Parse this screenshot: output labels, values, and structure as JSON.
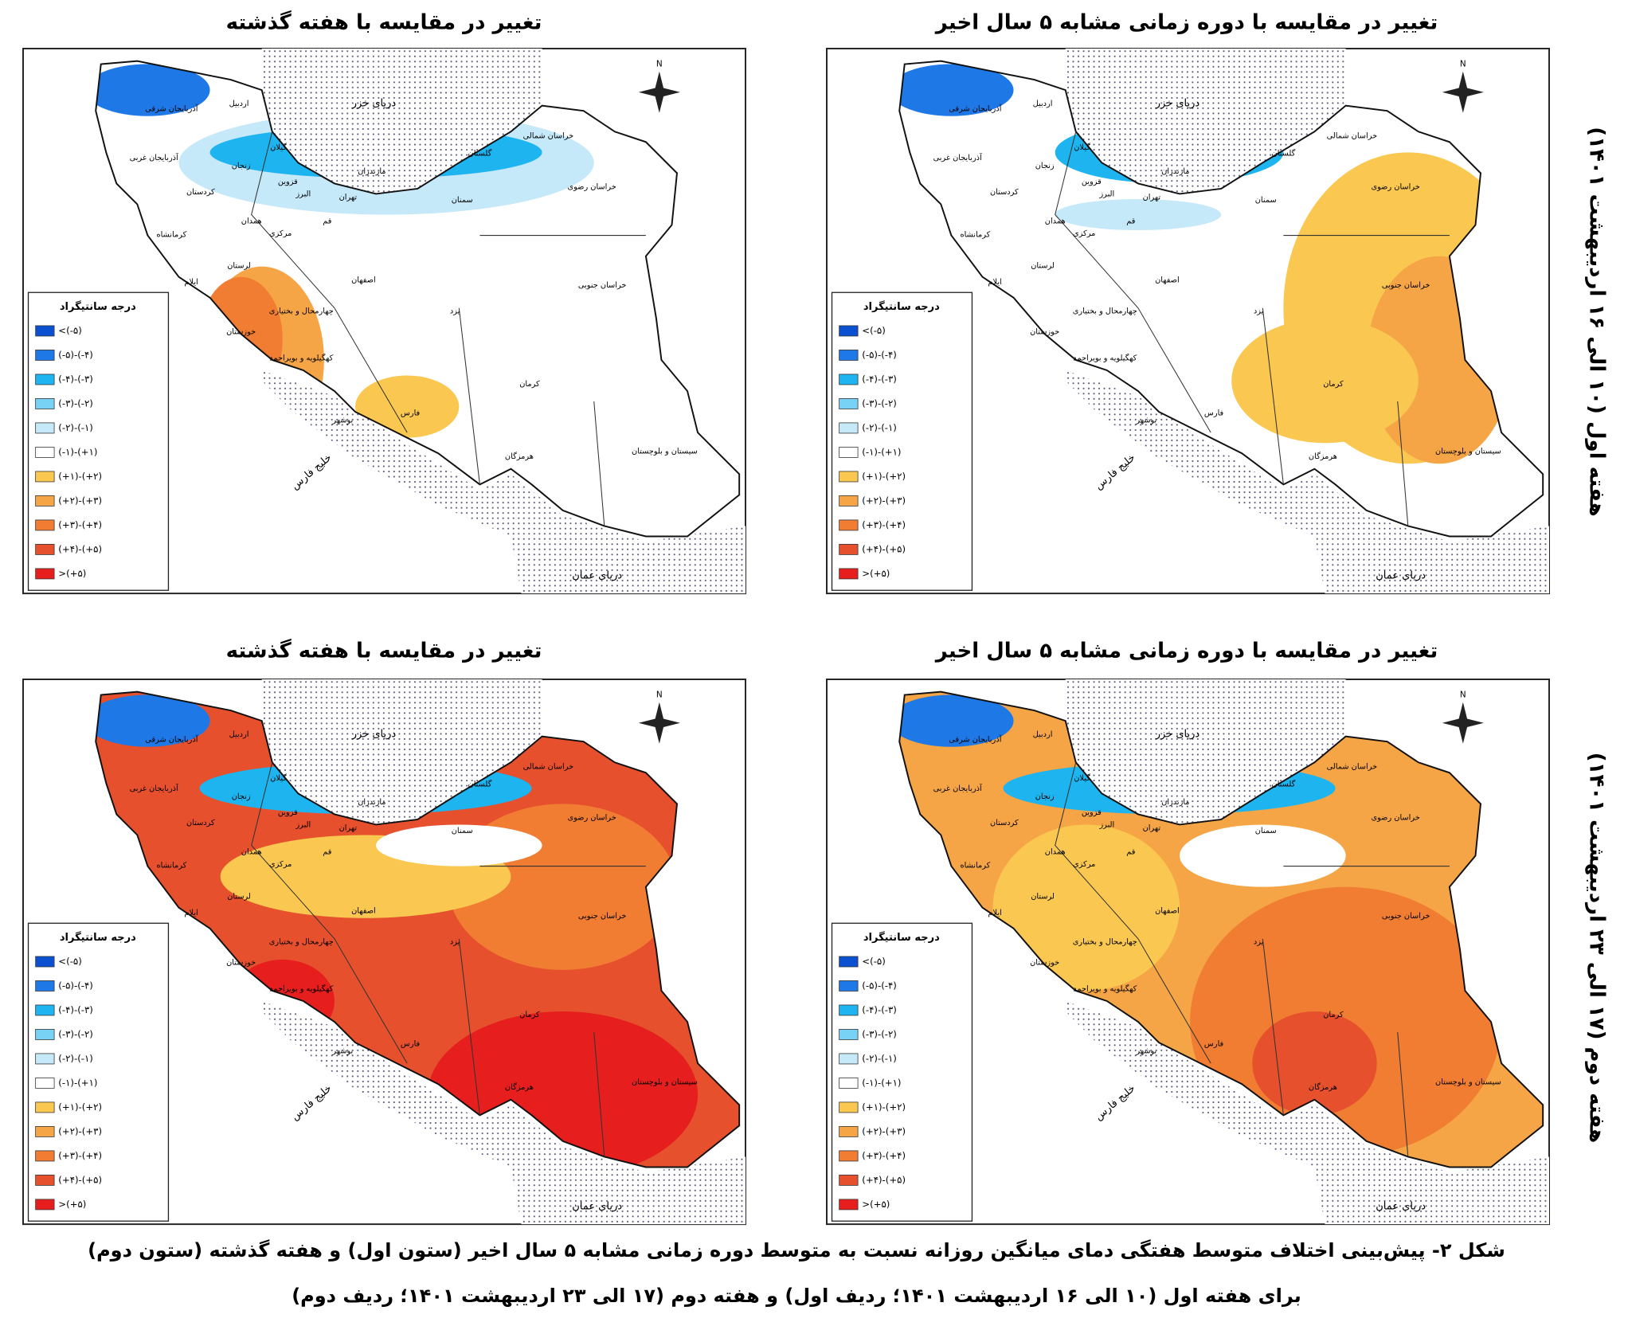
{
  "row_labels": [
    "هفته اول (۱۰ الی ۱۶ اردیبهشت ۱۴۰۱)",
    "هفته دوم (۱۷ الی ۲۳ اردیبهشت ۱۴۰۱)"
  ],
  "panels": [
    {
      "title": "تغییر در مقایسه با دوره زمانی مشابه ۵ سال اخیر"
    },
    {
      "title": "تغییر در مقایسه با هفته گذشته"
    },
    {
      "title": "تغییر در مقایسه با دوره زمانی مشابه ۵ سال اخیر"
    },
    {
      "title": "تغییر در مقایسه با هفته گذشته"
    }
  ],
  "legend": {
    "title": "درجه سانتیگراد",
    "items": [
      {
        "label": "<(-۵)",
        "color": "#0a50d0"
      },
      {
        "label": "(-۵)-(-۴)",
        "color": "#1e78e6"
      },
      {
        "label": "(-۴)-(-۳)",
        "color": "#1eb4f0"
      },
      {
        "label": "(-۳)-(-۲)",
        "color": "#78d2f5"
      },
      {
        "label": "(-۲)-(-۱)",
        "color": "#c6e9fa"
      },
      {
        "label": "(-۱)-(+۱)",
        "color": "#ffffff"
      },
      {
        "label": "(+۱)-(+۲)",
        "color": "#fac850"
      },
      {
        "label": "(+۲)-(+۳)",
        "color": "#f5a546"
      },
      {
        "label": "(+۳)-(+۴)",
        "color": "#f07d32"
      },
      {
        "label": "(+۴)-(+۵)",
        "color": "#e6502d"
      },
      {
        "label": ">(+۵)",
        "color": "#e61e1e"
      }
    ]
  },
  "provinces": [
    "آذربایجان شرقی",
    "اردبیل",
    "آذربایجان غربی",
    "زنجان",
    "گیلان",
    "مازندران",
    "گلستان",
    "خراسان شمالی",
    "خراسان رضوی",
    "سمنان",
    "تهران",
    "البرز",
    "قزوین",
    "کردستان",
    "همدان",
    "مرکزی",
    "قم",
    "کرمانشاه",
    "لرستان",
    "ایلام",
    "اصفهان",
    "خراسان جنوبی",
    "یزد",
    "چهارمحال و بختیاری",
    "خوزستان",
    "کهگیلویه و بویراحمد",
    "کرمان",
    "فارس",
    "بوشهر",
    "هرمزگان",
    "سیستان و بلوچستان"
  ],
  "seas": [
    "دریای خزر",
    "دریای عمان",
    "خلیج فارس"
  ],
  "compass": "N",
  "caption": [
    "شکل ۲- پیش‌بینی اختلاف متوسط هفتگی دمای میانگین روزانه نسبت به متوسط دوره زمانی مشابه ۵ سال اخیر (ستون اول) و هفته گذشته (ستون دوم)",
    "برای هفته اول (۱۰ الی ۱۶ اردیبهشت ۱۴۰۱؛ ردیف اول) و هفته دوم (۱۷ الی ۲۳ اردیبهشت ۱۴۰۱؛ ردیف دوم)"
  ]
}
